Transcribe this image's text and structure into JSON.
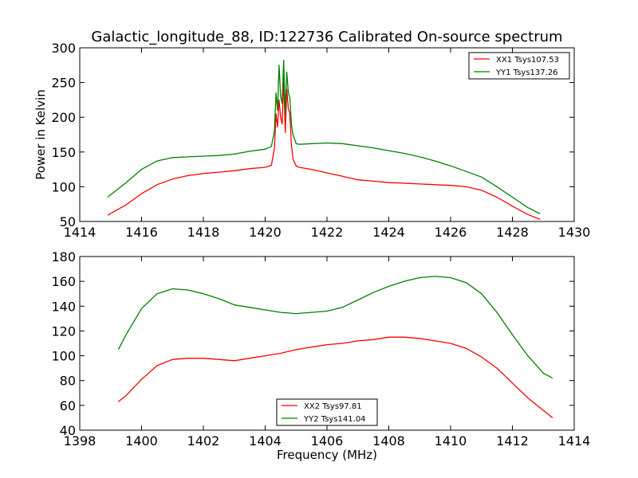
{
  "chart_data": [
    {
      "type": "line",
      "title": "Galactic_longitude_88, ID:122736 Calibrated On-source spectrum",
      "xlabel": "",
      "ylabel": "Power in Kelvin",
      "xlim": [
        1414,
        1430
      ],
      "ylim": [
        50,
        300
      ],
      "xticks": [
        "1414",
        "1416",
        "1418",
        "1420",
        "1422",
        "1424",
        "1426",
        "1428",
        "1430"
      ],
      "yticks": [
        "50",
        "100",
        "150",
        "200",
        "250",
        "300"
      ],
      "legend_position": "top-right",
      "series": [
        {
          "name": "XX1 Tsys107.53",
          "color": "#ff0000",
          "x": [
            1414.9,
            1415.5,
            1416,
            1416.5,
            1417,
            1417.5,
            1418,
            1418.5,
            1419,
            1419.5,
            1420,
            1420.2,
            1420.3,
            1420.35,
            1420.4,
            1420.45,
            1420.5,
            1420.55,
            1420.6,
            1420.65,
            1420.7,
            1420.75,
            1420.8,
            1420.85,
            1420.9,
            1421.0,
            1421.1,
            1421.5,
            1422,
            1422.5,
            1423,
            1423.5,
            1424,
            1424.5,
            1425,
            1425.5,
            1426,
            1426.5,
            1427,
            1427.5,
            1428,
            1428.5,
            1428.9
          ],
          "values": [
            59,
            74,
            90,
            103,
            111,
            116,
            119,
            121,
            123,
            126,
            128,
            131,
            155,
            205,
            186,
            225,
            200,
            190,
            255,
            178,
            240,
            212,
            205,
            160,
            140,
            130,
            128,
            125,
            120,
            115,
            110,
            108,
            106,
            105,
            104,
            103,
            102,
            100,
            95,
            85,
            72,
            60,
            53
          ]
        },
        {
          "name": "YY1 Tsys137.26",
          "color": "#008000",
          "x": [
            1414.9,
            1415.5,
            1416,
            1416.5,
            1417,
            1417.5,
            1418,
            1418.5,
            1419,
            1419.5,
            1420,
            1420.2,
            1420.3,
            1420.35,
            1420.4,
            1420.45,
            1420.5,
            1420.55,
            1420.6,
            1420.65,
            1420.7,
            1420.75,
            1420.8,
            1420.85,
            1420.9,
            1421.0,
            1421.1,
            1421.5,
            1422,
            1422.5,
            1423,
            1423.5,
            1424,
            1424.5,
            1425,
            1425.5,
            1426,
            1426.5,
            1427,
            1427.5,
            1428,
            1428.5,
            1428.9
          ],
          "values": [
            85,
            106,
            125,
            137,
            142,
            143,
            144,
            145,
            147,
            151,
            154,
            158,
            180,
            235,
            210,
            275,
            230,
            220,
            282,
            205,
            265,
            235,
            228,
            190,
            175,
            162,
            161,
            162,
            163,
            162,
            159,
            156,
            152,
            148,
            143,
            137,
            130,
            122,
            114,
            100,
            85,
            70,
            61
          ]
        }
      ]
    },
    {
      "type": "line",
      "title": "",
      "xlabel": "Frequency (MHz)",
      "ylabel": "",
      "xlim": [
        1398,
        1414
      ],
      "ylim": [
        40,
        180
      ],
      "xticks": [
        "1398",
        "1400",
        "1402",
        "1404",
        "1406",
        "1408",
        "1410",
        "1412",
        "1414"
      ],
      "yticks": [
        "40",
        "60",
        "80",
        "100",
        "120",
        "140",
        "160",
        "180"
      ],
      "legend_position": "bottom-center",
      "series": [
        {
          "name": "XX2 Tsys97.81",
          "color": "#ff0000",
          "x": [
            1399.25,
            1399.5,
            1400,
            1400.5,
            1401,
            1401.5,
            1402,
            1402.5,
            1403,
            1403.5,
            1404,
            1404.5,
            1405,
            1405.5,
            1406,
            1406.5,
            1407,
            1407.5,
            1408,
            1408.5,
            1409,
            1409.5,
            1410,
            1410.5,
            1411,
            1411.5,
            1412,
            1412.5,
            1413,
            1413.3
          ],
          "values": [
            63,
            68,
            81,
            92,
            97,
            98,
            98,
            97,
            96,
            98,
            100,
            102,
            105,
            107,
            109,
            110,
            112,
            113,
            115,
            115,
            114,
            112,
            110,
            106,
            99,
            90,
            78,
            66,
            56,
            50
          ]
        },
        {
          "name": "YY2 Tsys141.04",
          "color": "#008000",
          "x": [
            1399.25,
            1399.5,
            1400,
            1400.5,
            1401,
            1401.5,
            1402,
            1402.5,
            1403,
            1403.5,
            1404,
            1404.5,
            1405,
            1405.5,
            1406,
            1406.5,
            1407,
            1407.5,
            1408,
            1408.5,
            1409,
            1409.5,
            1410,
            1410.5,
            1411,
            1411.5,
            1412,
            1412.5,
            1413,
            1413.3
          ],
          "values": [
            105,
            117,
            138,
            150,
            154,
            153,
            150,
            146,
            141,
            139,
            137,
            135,
            134,
            135,
            136,
            139,
            145,
            151,
            156,
            160,
            163,
            164,
            163,
            159,
            150,
            135,
            117,
            100,
            86,
            82
          ]
        }
      ]
    }
  ]
}
